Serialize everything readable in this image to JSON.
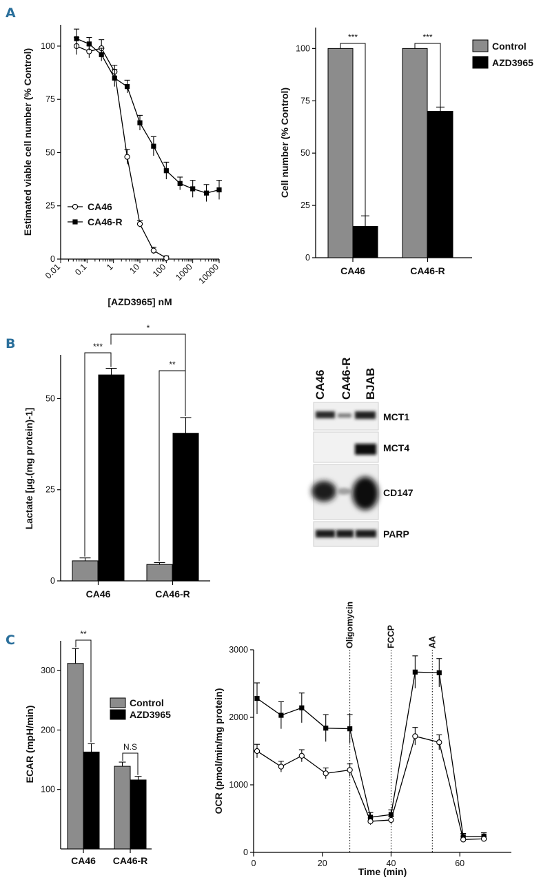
{
  "panels": {
    "a": "A",
    "b": "B",
    "c": "C"
  },
  "colors": {
    "control": "#8c8c8c",
    "azd": "#000000",
    "panel_letter": "#2a6f9b"
  },
  "chart_data": [
    {
      "id": "A1",
      "type": "line",
      "xscale": "log",
      "xlabel": "[AZD3965] nM",
      "ylabel": "Estimated viable cell number (% Control)",
      "xlim": [
        0.01,
        10000
      ],
      "ylim": [
        0,
        110
      ],
      "xticks": [
        "0.01",
        "0.1",
        "1",
        "10",
        "100",
        "1000",
        "10000"
      ],
      "yticks": [
        "0",
        "25",
        "50",
        "75",
        "100"
      ],
      "legend_position": "bottom-left",
      "series": [
        {
          "name": "CA46",
          "marker": "open-circle",
          "x": [
            0.04,
            0.12,
            0.35,
            1.1,
            3.3,
            10,
            33,
            100
          ],
          "y": [
            100,
            97.5,
            99,
            88,
            48,
            16.5,
            4,
            0.5
          ],
          "err": [
            4,
            3,
            4,
            3,
            3.5,
            1.5,
            1.5,
            1
          ]
        },
        {
          "name": "CA46-R",
          "marker": "filled-square",
          "x": [
            0.04,
            0.12,
            0.35,
            1.1,
            3.3,
            10,
            33,
            100,
            330,
            1000,
            3300,
            10000
          ],
          "y": [
            103.5,
            101,
            96,
            85,
            81,
            64,
            53,
            41.5,
            35.5,
            33,
            31,
            32.5
          ],
          "err": [
            4.5,
            3,
            3,
            4,
            3,
            3.5,
            4.5,
            4,
            3,
            4,
            4,
            4.5
          ]
        }
      ]
    },
    {
      "id": "A2",
      "type": "bar",
      "ylabel": "Cell number (% Control)",
      "ylim": [
        0,
        110
      ],
      "yticks": [
        "0",
        "25",
        "50",
        "75",
        "100"
      ],
      "categories": [
        "CA46",
        "CA46-R"
      ],
      "legend_position": "top-right",
      "series": [
        {
          "name": "Control",
          "values": [
            100,
            100
          ],
          "err": [
            0,
            0
          ]
        },
        {
          "name": "AZD3965",
          "values": [
            15,
            70
          ],
          "err": [
            5,
            2
          ]
        }
      ],
      "annotations": [
        "***",
        "***"
      ]
    },
    {
      "id": "B1",
      "type": "bar",
      "ylabel": "Lactate [µg.(mg protein)-1]",
      "ylim": [
        0,
        62
      ],
      "yticks": [
        "0",
        "25",
        "50"
      ],
      "categories": [
        "CA46",
        "CA46-R"
      ],
      "series": [
        {
          "name": "Control",
          "values": [
            5.5,
            4.5
          ],
          "err": [
            0.8,
            0.5
          ]
        },
        {
          "name": "AZD3965",
          "values": [
            56.5,
            40.5
          ],
          "err": [
            1.8,
            4.3
          ]
        }
      ],
      "annotations": [
        "***",
        "*",
        "**"
      ]
    },
    {
      "id": "C1",
      "type": "bar",
      "ylabel": "ECAR (mpH/min)",
      "ylim": [
        0,
        350
      ],
      "yticks": [
        "100",
        "200",
        "300"
      ],
      "categories": [
        "CA46",
        "CA46-R"
      ],
      "legend_position": "right",
      "series": [
        {
          "name": "Control",
          "values": [
            312,
            139
          ],
          "err": [
            25,
            7
          ]
        },
        {
          "name": "AZD3965",
          "values": [
            163,
            116
          ],
          "err": [
            14,
            6
          ]
        }
      ],
      "annotations": [
        "**",
        "N.S"
      ]
    },
    {
      "id": "C2",
      "type": "line",
      "xlabel": "Time (min)",
      "ylabel": "OCR (pmol/min/mg protein)",
      "xlim": [
        0,
        75
      ],
      "ylim": [
        0,
        3000
      ],
      "xticks": [
        "0",
        "20",
        "40",
        "60"
      ],
      "yticks": [
        "0",
        "1000",
        "2000",
        "3000"
      ],
      "events": [
        {
          "label": "Oligomycin",
          "x": 28
        },
        {
          "label": "FCCP",
          "x": 40
        },
        {
          "label": "AA",
          "x": 52
        }
      ],
      "series": [
        {
          "marker": "filled-square",
          "x": [
            1,
            8,
            14,
            21,
            28,
            34,
            40,
            47,
            54,
            61,
            67
          ],
          "y": [
            2280,
            2030,
            2140,
            1840,
            1830,
            520,
            560,
            2670,
            2660,
            230,
            240
          ],
          "err": [
            230,
            200,
            220,
            200,
            210,
            70,
            70,
            240,
            210,
            50,
            50
          ]
        },
        {
          "marker": "open-circle",
          "x": [
            1,
            8,
            14,
            21,
            28,
            34,
            40,
            47,
            54,
            61,
            67
          ],
          "y": [
            1500,
            1270,
            1430,
            1170,
            1220,
            460,
            480,
            1720,
            1630,
            190,
            200
          ],
          "err": [
            100,
            80,
            90,
            80,
            90,
            50,
            50,
            130,
            110,
            40,
            40
          ]
        }
      ]
    }
  ],
  "blot": {
    "columns": [
      "CA46",
      "CA46-R",
      "BJAB"
    ],
    "rows": [
      "MCT1",
      "MCT4",
      "CD147",
      "PARP"
    ]
  }
}
